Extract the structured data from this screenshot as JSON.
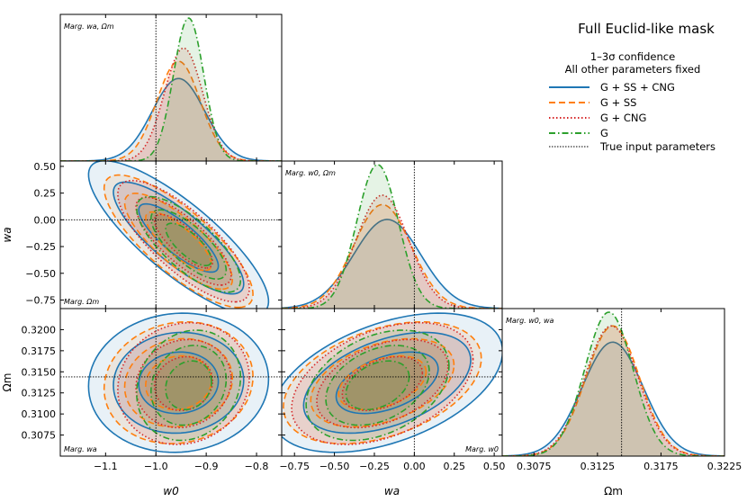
{
  "figure": {
    "title": "Full Euclid-like mask",
    "legend_header_line1": "1–3σ confidence",
    "legend_header_line2": "All other parameters fixed",
    "truth_label": "True input parameters"
  },
  "colors": {
    "G + SS + CNG": "#1f77b4",
    "G + SS": "#ff7f0e",
    "G + CNG": "#d62728",
    "G": "#2ca02c"
  },
  "chart_data": {
    "type": "triangle-corner-plot",
    "title": "Full Euclid-like mask",
    "parameters": [
      "w_0",
      "w_a",
      "Ω_m"
    ],
    "axis_labels": {
      "w0": "w0",
      "wa": "wa",
      "om": "Ωm"
    },
    "truth": {
      "w0": -1.0,
      "wa": 0.0,
      "om": 0.3144
    },
    "ranges": {
      "w0": [
        -1.19,
        -0.75
      ],
      "wa": [
        -0.83,
        0.55
      ],
      "om": [
        0.305,
        0.3225
      ]
    },
    "ticks": {
      "w0": [
        "−1.1",
        "−1.0",
        "−0.9",
        "−0.8"
      ],
      "wa": [
        "−0.75",
        "−0.50",
        "−0.25",
        "0.00",
        "0.25",
        "0.50"
      ],
      "wa_y": [
        "0.50",
        "0.25",
        "0.00",
        "−0.25",
        "−0.50",
        "−0.75"
      ],
      "om_y": [
        "0.3200",
        "0.3175",
        "0.3150",
        "0.3125",
        "0.3100",
        "0.3075"
      ],
      "om_x": [
        "0.3075",
        "0.3125",
        "0.3175",
        "0.3225"
      ]
    },
    "panel_labels": {
      "p_w0": "Marg. wa, Ωm",
      "p_wa": "Marg. w0, Ωm",
      "p_om": "Marg. w0, wa",
      "p_w0wa": "Marg. Ωm",
      "p_w0om": "Marg. wa",
      "p_waom": "Marg. w0"
    },
    "series": [
      {
        "name": "G + SS + CNG",
        "style": "solid",
        "w0": {
          "mean": -0.955,
          "sd": 0.052
        },
        "wa": {
          "mean": -0.17,
          "sd": 0.21
        },
        "om": {
          "mean": 0.3137,
          "sd": 0.0024
        },
        "corr_w0_wa": -0.82,
        "corr_w0_om": 0.05,
        "corr_wa_om": 0.45
      },
      {
        "name": "G + SS",
        "style": "dashed",
        "w0": {
          "mean": -0.955,
          "sd": 0.043
        },
        "wa": {
          "mean": -0.2,
          "sd": 0.18
        },
        "om": {
          "mean": 0.3137,
          "sd": 0.0021
        },
        "corr_w0_wa": -0.8,
        "corr_w0_om": 0.1,
        "corr_wa_om": 0.4
      },
      {
        "name": "G + CNG",
        "style": "dotted",
        "w0": {
          "mean": -0.945,
          "sd": 0.038
        },
        "wa": {
          "mean": -0.2,
          "sd": 0.165
        },
        "om": {
          "mean": 0.3136,
          "sd": 0.0021
        },
        "corr_w0_wa": -0.78,
        "corr_w0_om": 0.1,
        "corr_wa_om": 0.4
      },
      {
        "name": "G",
        "style": "dashdot",
        "w0": {
          "mean": -0.935,
          "sd": 0.03
        },
        "wa": {
          "mean": -0.23,
          "sd": 0.13
        },
        "om": {
          "mean": 0.3134,
          "sd": 0.0019
        },
        "corr_w0_wa": -0.75,
        "corr_w0_om": 0.15,
        "corr_wa_om": 0.35
      }
    ]
  }
}
